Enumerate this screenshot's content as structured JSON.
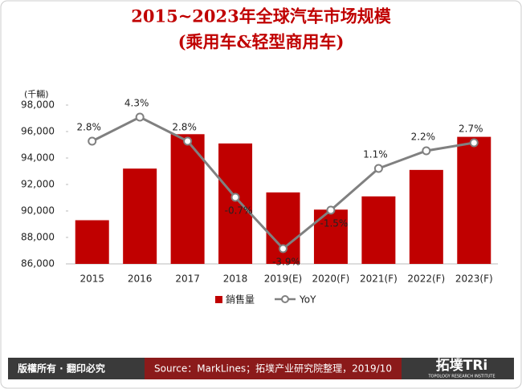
{
  "chart_data": {
    "type": "bar-line",
    "title": "2015~2023年全球汽车市场规模",
    "subtitle": "(乘用车&轻型商用车)",
    "y_unit": "(千輛)",
    "categories": [
      "2015",
      "2016",
      "2017",
      "2018",
      "2019(E)",
      "2020(F)",
      "2021(F)",
      "2022(F)",
      "2023(F)"
    ],
    "series": [
      {
        "name": "銷售量",
        "type": "bar",
        "color": "#c00000",
        "values": [
          89300,
          93200,
          95800,
          95100,
          91400,
          90100,
          91100,
          93100,
          95600
        ]
      },
      {
        "name": "YoY",
        "type": "line",
        "axis": "y2",
        "color": "#808080",
        "values": [
          2.8,
          4.3,
          2.8,
          -0.7,
          -3.9,
          -1.5,
          1.1,
          2.2,
          2.7
        ],
        "value_labels": [
          "2.8%",
          "4.3%",
          "2.8%",
          "-0.7%",
          "-3.9%",
          "-1.5%",
          "1.1%",
          "2.2%",
          "2.7%"
        ]
      }
    ],
    "ylim": [
      86000,
      98000
    ],
    "yticks": [
      {
        "value": 86000,
        "label": "86,000"
      },
      {
        "value": 88000,
        "label": "88,000"
      },
      {
        "value": 90000,
        "label": "90,000"
      },
      {
        "value": 92000,
        "label": "92,000"
      },
      {
        "value": 94000,
        "label": "94,000"
      },
      {
        "value": 96000,
        "label": "96,000"
      },
      {
        "value": 98000,
        "label": "98,000"
      }
    ],
    "y2lim": [
      -4.85,
      5.05
    ],
    "grid": false
  },
  "footer": {
    "rights": "版權所有 · 翻印必究",
    "source": "Source：MarkLines；拓墣产业研究院整理，2019/10",
    "logo": "拓墣TRi",
    "logo_sub": "TOPOLOGY RESEARCH INSTITUTE"
  }
}
